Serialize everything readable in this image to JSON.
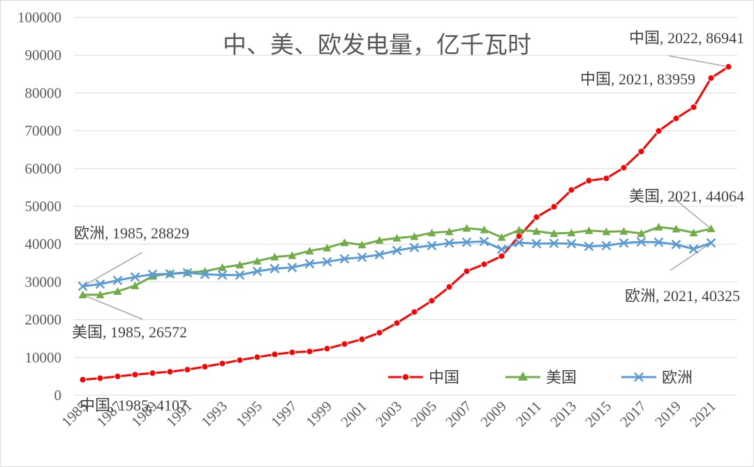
{
  "chart_data": {
    "type": "line",
    "title": "中、美、欧发电量，亿千瓦时",
    "xlabel": "",
    "ylabel": "",
    "ylim": [
      0,
      100000
    ],
    "yticks": [
      0,
      10000,
      20000,
      30000,
      40000,
      50000,
      60000,
      70000,
      80000,
      90000,
      100000
    ],
    "xticks": [
      "1985",
      "1987",
      "1989",
      "1991",
      "1993",
      "1995",
      "1997",
      "1999",
      "2001",
      "2003",
      "2005",
      "2007",
      "2009",
      "2011",
      "2013",
      "2015",
      "2017",
      "2019",
      "2021"
    ],
    "x": [
      1985,
      1986,
      1987,
      1988,
      1989,
      1990,
      1991,
      1992,
      1993,
      1994,
      1995,
      1996,
      1997,
      1998,
      1999,
      2000,
      2001,
      2002,
      2003,
      2004,
      2005,
      2006,
      2007,
      2008,
      2009,
      2010,
      2011,
      2012,
      2013,
      2014,
      2015,
      2016,
      2017,
      2018,
      2019,
      2020,
      2021,
      2022
    ],
    "grid": true,
    "legend_position": "bottom-right",
    "series": [
      {
        "name": "中国",
        "color": "#ff0000",
        "marker": "circle",
        "values": [
          4107,
          4495,
          4973,
          5452,
          5848,
          6212,
          6775,
          7539,
          8395,
          9281,
          10069,
          10813,
          11342,
          11577,
          12331,
          13556,
          14808,
          16540,
          19106,
          22033,
          25003,
          28657,
          32816,
          34669,
          36812,
          42072,
          47130,
          49876,
          54316,
          56801,
          57399,
          60228,
          64529,
          69947,
          73269,
          76236,
          83959,
          86941
        ]
      },
      {
        "name": "美国",
        "color": "#70ad47",
        "marker": "triangle",
        "values": [
          26572,
          26600,
          27500,
          29000,
          31500,
          32200,
          32500,
          32800,
          33800,
          34500,
          35500,
          36600,
          37000,
          38200,
          39000,
          40400,
          39800,
          41000,
          41600,
          42000,
          43000,
          43300,
          44200,
          43800,
          41800,
          43700,
          43400,
          42800,
          43000,
          43600,
          43300,
          43400,
          42800,
          44500,
          44000,
          43000,
          44064,
          null
        ]
      },
      {
        "name": "欧洲",
        "color": "#5b9bd5",
        "marker": "x",
        "values": [
          28829,
          29400,
          30400,
          31300,
          32000,
          32100,
          32400,
          32000,
          31800,
          31800,
          32800,
          33500,
          33800,
          34800,
          35300,
          36100,
          36500,
          37200,
          38300,
          39100,
          39600,
          40300,
          40500,
          40700,
          38600,
          40400,
          40100,
          40200,
          40100,
          39400,
          39600,
          40300,
          40600,
          40500,
          39900,
          38700,
          40325,
          null
        ]
      }
    ],
    "annotations": [
      {
        "text": "中国, 2022, 86941"
      },
      {
        "text": "中国, 2021, 83959"
      },
      {
        "text": "美国, 2021, 44064"
      },
      {
        "text": "欧洲, 2021, 40325"
      },
      {
        "text": "欧洲, 1985, 28829"
      },
      {
        "text": "美国, 1985, 26572"
      },
      {
        "text": "中国, 1985, 4107"
      }
    ]
  }
}
